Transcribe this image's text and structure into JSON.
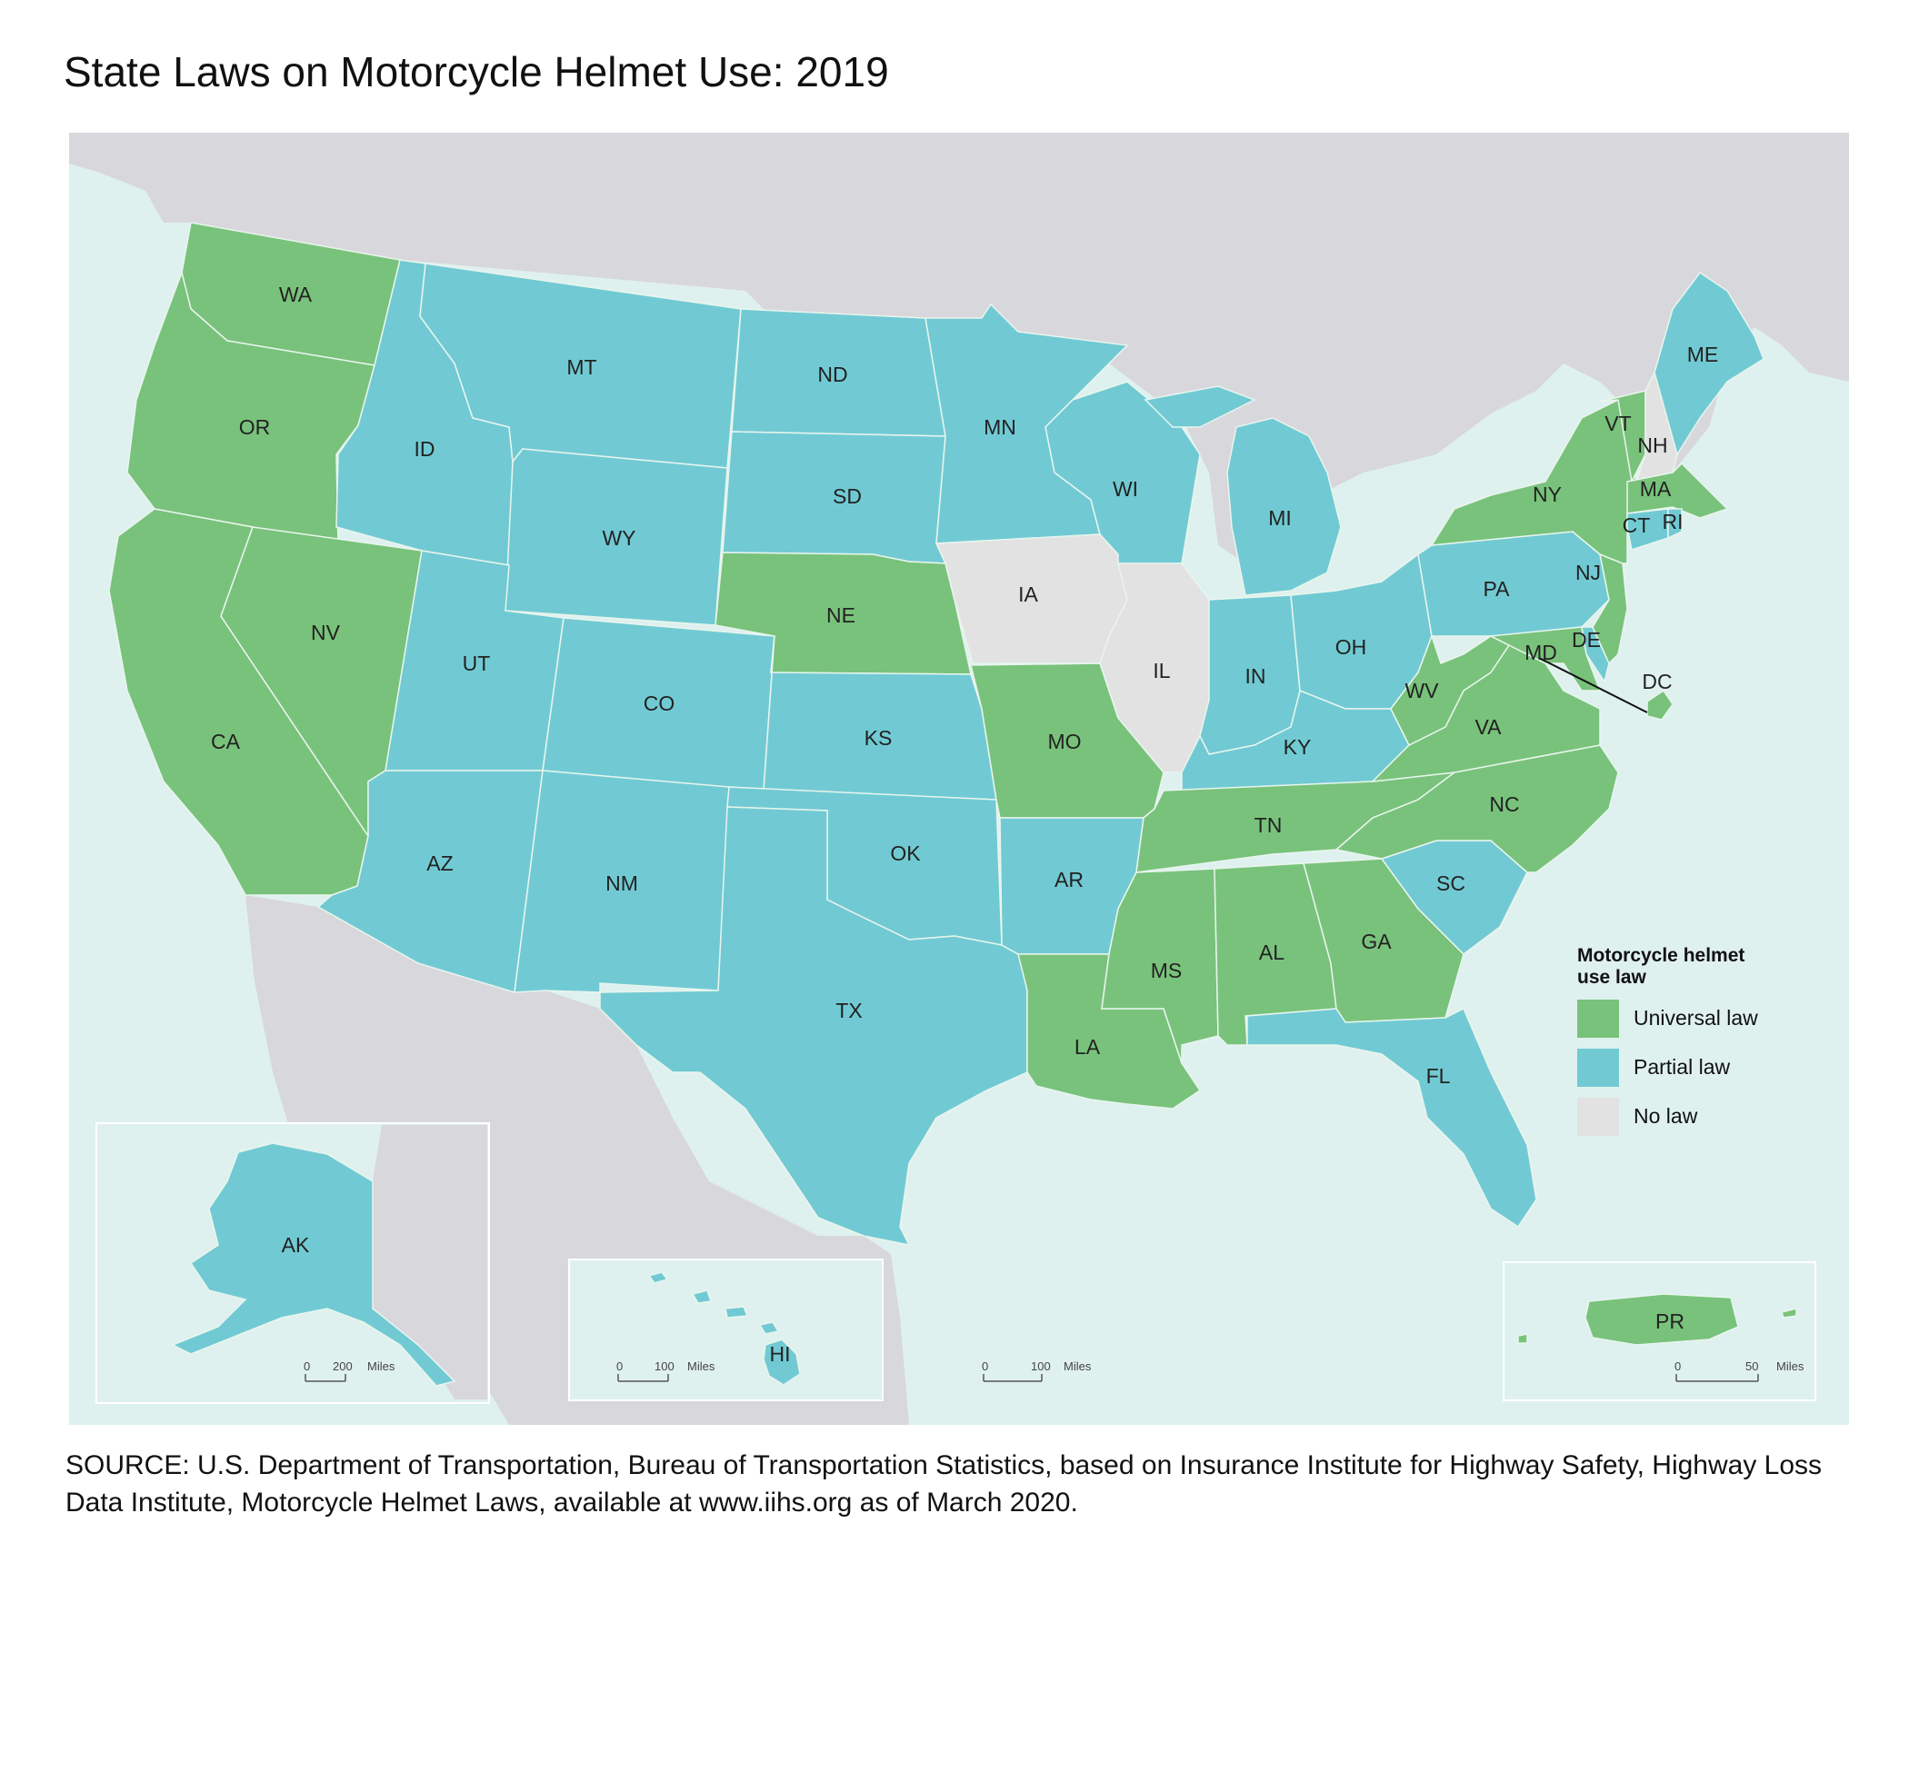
{
  "title": "State Laws on Motorcycle Helmet Use: 2019",
  "source": "SOURCE: U.S. Department of Transportation, Bureau of Transportation Statistics, based on Insurance Institute for Highway Safety, Highway Loss Data Institute, Motorcycle Helmet Laws, available at www.iihs.org as of March 2020.",
  "colors": {
    "universal": "#79c27b",
    "partial": "#71cad3",
    "none": "#e2e2e2",
    "water": "#dff1ef",
    "land": "#d8d7dc",
    "border": "#e8f5ee"
  },
  "legend": {
    "title_line1": "Motorcycle helmet",
    "title_line2": "use law",
    "items": [
      {
        "label": "Universal law",
        "category": "universal"
      },
      {
        "label": "Partial law",
        "category": "partial"
      },
      {
        "label": "No law",
        "category": "none"
      }
    ]
  },
  "states": [
    {
      "abbr": "WA",
      "category": "universal"
    },
    {
      "abbr": "OR",
      "category": "universal"
    },
    {
      "abbr": "CA",
      "category": "universal"
    },
    {
      "abbr": "NV",
      "category": "universal"
    },
    {
      "abbr": "ID",
      "category": "partial"
    },
    {
      "abbr": "MT",
      "category": "partial"
    },
    {
      "abbr": "WY",
      "category": "partial"
    },
    {
      "abbr": "UT",
      "category": "partial"
    },
    {
      "abbr": "AZ",
      "category": "partial"
    },
    {
      "abbr": "CO",
      "category": "partial"
    },
    {
      "abbr": "NM",
      "category": "partial"
    },
    {
      "abbr": "ND",
      "category": "partial"
    },
    {
      "abbr": "SD",
      "category": "partial"
    },
    {
      "abbr": "NE",
      "category": "universal"
    },
    {
      "abbr": "KS",
      "category": "partial"
    },
    {
      "abbr": "OK",
      "category": "partial"
    },
    {
      "abbr": "TX",
      "category": "partial"
    },
    {
      "abbr": "MN",
      "category": "partial"
    },
    {
      "abbr": "IA",
      "category": "none"
    },
    {
      "abbr": "MO",
      "category": "universal"
    },
    {
      "abbr": "AR",
      "category": "partial"
    },
    {
      "abbr": "LA",
      "category": "universal"
    },
    {
      "abbr": "WI",
      "category": "partial"
    },
    {
      "abbr": "IL",
      "category": "none"
    },
    {
      "abbr": "MI",
      "category": "partial"
    },
    {
      "abbr": "IN",
      "category": "partial"
    },
    {
      "abbr": "OH",
      "category": "partial"
    },
    {
      "abbr": "KY",
      "category": "partial"
    },
    {
      "abbr": "TN",
      "category": "universal"
    },
    {
      "abbr": "MS",
      "category": "universal"
    },
    {
      "abbr": "AL",
      "category": "universal"
    },
    {
      "abbr": "GA",
      "category": "universal"
    },
    {
      "abbr": "FL",
      "category": "partial"
    },
    {
      "abbr": "SC",
      "category": "partial"
    },
    {
      "abbr": "NC",
      "category": "universal"
    },
    {
      "abbr": "VA",
      "category": "universal"
    },
    {
      "abbr": "WV",
      "category": "universal"
    },
    {
      "abbr": "MD",
      "category": "universal"
    },
    {
      "abbr": "DE",
      "category": "partial"
    },
    {
      "abbr": "DC",
      "category": "universal"
    },
    {
      "abbr": "PA",
      "category": "partial"
    },
    {
      "abbr": "NJ",
      "category": "universal"
    },
    {
      "abbr": "NY",
      "category": "universal"
    },
    {
      "abbr": "CT",
      "category": "partial"
    },
    {
      "abbr": "RI",
      "category": "partial"
    },
    {
      "abbr": "MA",
      "category": "universal"
    },
    {
      "abbr": "VT",
      "category": "universal"
    },
    {
      "abbr": "NH",
      "category": "none"
    },
    {
      "abbr": "ME",
      "category": "partial"
    },
    {
      "abbr": "AK",
      "category": "partial"
    },
    {
      "abbr": "HI",
      "category": "partial"
    },
    {
      "abbr": "PR",
      "category": "universal"
    }
  ],
  "scales": {
    "alaska": {
      "zero": "0",
      "value": "200",
      "unit": "Miles"
    },
    "hawaii": {
      "zero": "0",
      "value": "100",
      "unit": "Miles"
    },
    "mainland": {
      "zero": "0",
      "value": "100",
      "unit": "Miles"
    },
    "puerto_rico": {
      "zero": "0",
      "value": "50",
      "unit": "Miles"
    }
  }
}
